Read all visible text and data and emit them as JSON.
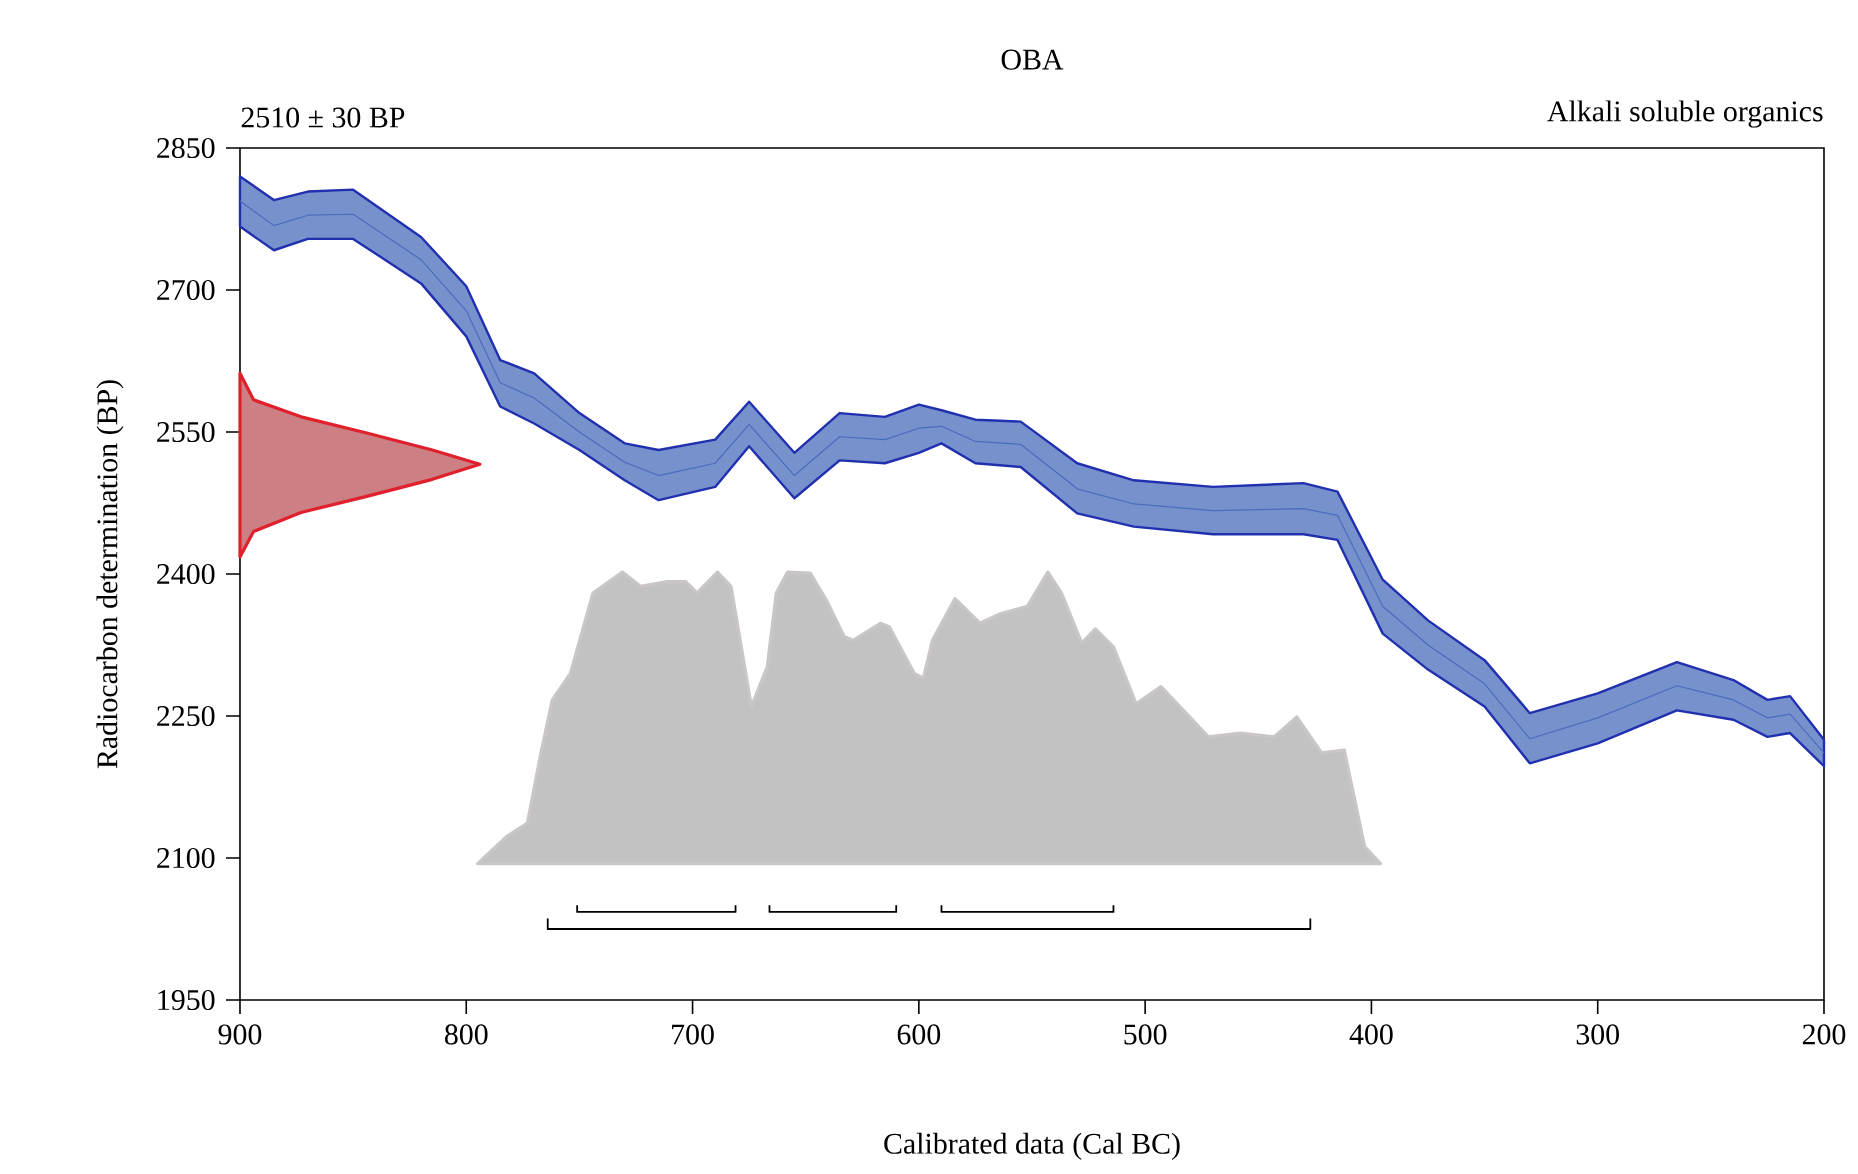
{
  "chart_data": {
    "type": "line",
    "title": "OBA",
    "xlabel": "Calibrated data (Cal BC)",
    "ylabel": "Radiocarbon determination (BP)",
    "annotations": [
      "2510 ± 30 BP",
      "Alkali soluble organics"
    ],
    "xlim": [
      900,
      200
    ],
    "ylim": [
      1950,
      2850
    ],
    "xticks": [
      900,
      800,
      700,
      600,
      500,
      400,
      300,
      200
    ],
    "yticks": [
      1950,
      2100,
      2250,
      2400,
      2550,
      2700,
      2850
    ],
    "grid": false,
    "series": [
      {
        "type": "line",
        "color": "#4a6cbc",
        "x": [
          900,
          885,
          870,
          850,
          820,
          800,
          785,
          770,
          750,
          730,
          715,
          690,
          675,
          655,
          635,
          615,
          600,
          590,
          575,
          555,
          530,
          505,
          470,
          430,
          415,
          395,
          375,
          350,
          330,
          300,
          265,
          240,
          225,
          215,
          200
        ],
        "values": [
          2794,
          2768,
          2779,
          2780,
          2732,
          2678,
          2602,
          2586,
          2550,
          2518,
          2504,
          2517,
          2558,
          2504,
          2545,
          2542,
          2554,
          2556,
          2540,
          2537,
          2490,
          2474,
          2467,
          2469,
          2462,
          2366,
          2325,
          2284,
          2226,
          2248,
          2282,
          2267,
          2248,
          2252,
          2211
        ],
        "upper": [
          2820,
          2795,
          2804,
          2806,
          2756,
          2704,
          2626,
          2612,
          2570,
          2538,
          2531,
          2542,
          2582,
          2528,
          2570,
          2566,
          2579,
          2573,
          2563,
          2561,
          2517,
          2499,
          2492,
          2496,
          2487,
          2394,
          2351,
          2309,
          2253,
          2274,
          2307,
          2288,
          2267,
          2271,
          2225
        ],
        "lower": [
          2767,
          2742,
          2754,
          2754,
          2707,
          2651,
          2577,
          2559,
          2531,
          2499,
          2478,
          2492,
          2535,
          2480,
          2520,
          2517,
          2528,
          2538,
          2517,
          2513,
          2464,
          2450,
          2442,
          2442,
          2436,
          2337,
          2299,
          2260,
          2200,
          2221,
          2256,
          2246,
          2228,
          2232,
          2197
        ]
      },
      {
        "type": "area",
        "color": "#e0202c",
        "x": [
          900,
          894,
          873,
          844,
          815,
          794,
          815,
          844,
          873,
          894,
          900
        ],
        "values": [
          2612,
          2584,
          2566,
          2549,
          2531,
          2516,
          2500,
          2482,
          2465,
          2445,
          2418
        ]
      },
      {
        "type": "area",
        "color": "#c9c6c5",
        "x": [
          795,
          782,
          773,
          767,
          762,
          754,
          744,
          731,
          723,
          711,
          703,
          698,
          689,
          683,
          674,
          667,
          663,
          658,
          648,
          641,
          633,
          629,
          617,
          613,
          602,
          598,
          594,
          584,
          573,
          564,
          552,
          543,
          537,
          528,
          522,
          514,
          504,
          493,
          472,
          458,
          443,
          433,
          422,
          412,
          403,
          396
        ],
        "values": [
          2094,
          2123,
          2137,
          2211,
          2267,
          2295,
          2380,
          2402,
          2387,
          2392,
          2392,
          2380,
          2402,
          2387,
          2260,
          2302,
          2380,
          2402,
          2401,
          2373,
          2334,
          2330,
          2348,
          2344,
          2295,
          2290,
          2330,
          2374,
          2348,
          2358,
          2366,
          2402,
          2380,
          2327,
          2342,
          2323,
          2263,
          2281,
          2228,
          2232,
          2228,
          2249,
          2211,
          2214,
          2112,
          2094
        ]
      },
      {
        "color": "#000000",
        "x": [
          751,
          751,
          681,
          681
        ],
        "values": [
          2050,
          2043,
          2043,
          2050
        ]
      },
      {
        "color": "#000000",
        "x": [
          666,
          666,
          610,
          610
        ],
        "values": [
          2050,
          2043,
          2043,
          2050
        ]
      },
      {
        "color": "#000000",
        "x": [
          590,
          590,
          514,
          514
        ],
        "values": [
          2050,
          2043,
          2043,
          2050
        ]
      },
      {
        "color": "#000000",
        "x": [
          764,
          764,
          427,
          427
        ],
        "values": [
          2036,
          2025,
          2025,
          2036
        ]
      }
    ]
  }
}
